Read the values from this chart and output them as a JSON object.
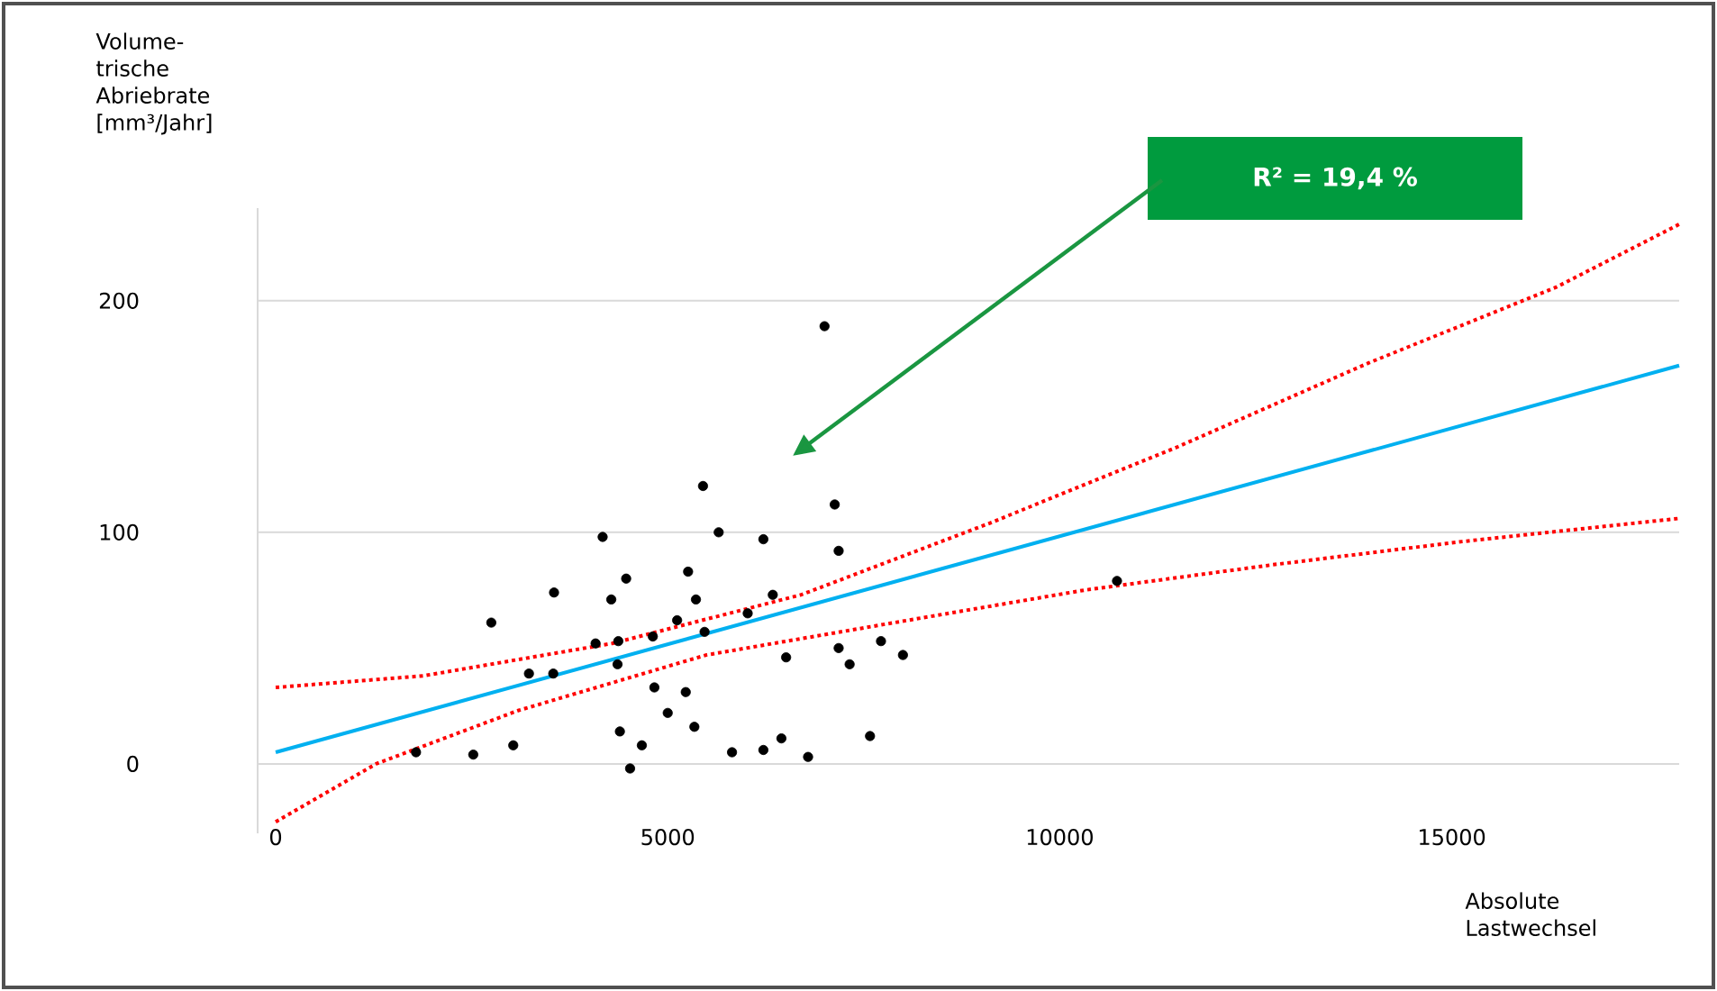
{
  "chart_data": {
    "type": "scatter",
    "xlabel": "Absolute Lastwechsel",
    "annotations": [
      "Volume-trische Abriebrate [mm³/Jahr]",
      "R² = 19,4 %"
    ],
    "xlim": [
      -230,
      17900
    ],
    "ylim": [
      -30,
      240
    ],
    "xticks": [
      0,
      5000,
      10000,
      15000
    ],
    "yticks": [
      0,
      100,
      200
    ],
    "grid": "y",
    "series": [
      {
        "color": "#000000",
        "marker": "circle",
        "x": [
          7000,
          5450,
          7130,
          5650,
          4170,
          6220,
          7180,
          5260,
          4470,
          3550,
          4280,
          5360,
          6340,
          2750,
          6020,
          5120,
          5470,
          4810,
          4080,
          4370,
          4360,
          3230,
          3540,
          6510,
          7180,
          7320,
          7720,
          8000,
          4830,
          5230,
          5000,
          5340,
          4390,
          4670,
          4520,
          5820,
          6220,
          6450,
          6790,
          7580,
          1790,
          2520,
          3030,
          10730
        ],
        "values": [
          189,
          120,
          112,
          100,
          98,
          97,
          92,
          83,
          80,
          74,
          71,
          71,
          73,
          61,
          65,
          62,
          57,
          55,
          52,
          53,
          43,
          39,
          39,
          46,
          50,
          43,
          53,
          47,
          33,
          31,
          22,
          16,
          14,
          8,
          -2,
          5,
          6,
          11,
          3,
          12,
          5,
          4,
          8,
          79
        ]
      },
      {
        "type": "line",
        "color": "#00b0f0",
        "line_style": "solid",
        "marker": "none",
        "x": [
          0,
          17900
        ],
        "values": [
          5,
          172
        ]
      },
      {
        "type": "line",
        "color": "#ff0000",
        "line_style": "dotted",
        "marker": "none",
        "x": [
          0,
          1880,
          4290,
          6700,
          9110,
          11510,
          13930,
          16340,
          17900
        ],
        "values": [
          33,
          38,
          52,
          73,
          104,
          137,
          173,
          206,
          233
        ]
      },
      {
        "type": "line",
        "color": "#ff0000",
        "line_style": "dotted",
        "marker": "none",
        "x": [
          0,
          1280,
          3090,
          5490,
          7890,
          10310,
          12720,
          15130,
          17900
        ],
        "values": [
          -25,
          0,
          23,
          47,
          61,
          75,
          86,
          96,
          106
        ]
      }
    ]
  }
}
